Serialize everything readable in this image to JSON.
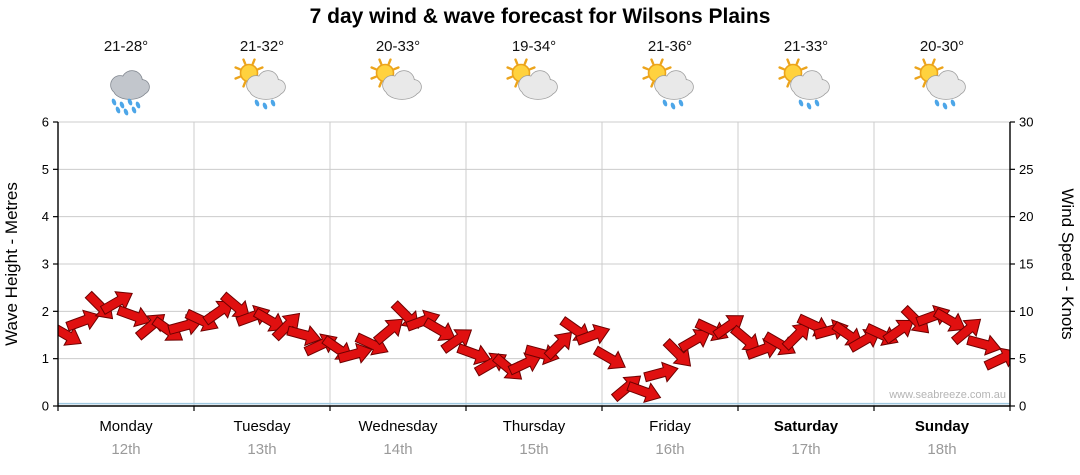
{
  "title": "7 day wind & wave forecast for Wilsons Plains",
  "watermark": "www.seabreeze.com.au",
  "colors": {
    "arrow": "#e01010",
    "arrow_outline": "#6e0000",
    "grid": "#cccccc",
    "axis": "#000000",
    "wave_line": "#9fc8e0",
    "date_text": "#9a9a9a",
    "watermark_text": "#b4b4b4",
    "sun_fill": "#ffd23e",
    "sun_stroke": "#eca41c",
    "cloud_fill": "#e9e9e9",
    "cloud_stroke": "#9a9a9a",
    "cloud_dark_fill": "#c2c6cc",
    "cloud_dark_stroke": "#7d838c",
    "rain_drop": "#4da6e8"
  },
  "days": [
    {
      "name": "Monday",
      "date": "12th",
      "temp": "21-28°",
      "icon": "rain-cloud",
      "bold": false
    },
    {
      "name": "Tuesday",
      "date": "13th",
      "temp": "21-32°",
      "icon": "sun-cloud-rain",
      "bold": false
    },
    {
      "name": "Wednesday",
      "date": "14th",
      "temp": "20-33°",
      "icon": "sun-cloud",
      "bold": false
    },
    {
      "name": "Thursday",
      "date": "15th",
      "temp": "19-34°",
      "icon": "sun-cloud",
      "bold": false
    },
    {
      "name": "Friday",
      "date": "16th",
      "temp": "21-36°",
      "icon": "sun-cloud-rain",
      "bold": false
    },
    {
      "name": "Saturday",
      "date": "17th",
      "temp": "21-33°",
      "icon": "sun-cloud-rain",
      "bold": true
    },
    {
      "name": "Sunday",
      "date": "18th",
      "temp": "20-30°",
      "icon": "sun-cloud-rain",
      "bold": true
    }
  ],
  "axes": {
    "left_label": "Wave Height - Metres",
    "right_label": "Wind Speed - Knots",
    "left_ticks": [
      0,
      1,
      2,
      3,
      4,
      5,
      6
    ],
    "right_ticks": [
      0,
      5,
      10,
      15,
      20,
      25,
      30
    ],
    "left_range": [
      0,
      6
    ],
    "right_range": [
      0,
      30
    ]
  },
  "chart_data": {
    "type": "line",
    "title": "7 day wind & wave forecast for Wilsons Plains",
    "xlabel": "",
    "ylabel_left": "Wave Height - Metres",
    "ylabel_right": "Wind Speed - Knots",
    "ylim_left": [
      0,
      6
    ],
    "ylim_right": [
      0,
      30
    ],
    "grid": true,
    "x_units": "days (0 = start of Monday, 7 = end of Sunday)",
    "x_start": 0.0625,
    "x_step": 0.125,
    "x_categories": [
      "Monday 12th",
      "Tuesday 13th",
      "Wednesday 14th",
      "Thursday 15th",
      "Friday 16th",
      "Saturday 17th",
      "Sunday 18th"
    ],
    "series": [
      {
        "name": "Wind Speed",
        "axis": "right",
        "units": "knots",
        "style": "red-arrows",
        "values": [
          7.5,
          9,
          10.5,
          11,
          9.5,
          8.5,
          8,
          8.5,
          9,
          10,
          10.5,
          9.5,
          9,
          8.5,
          7.5,
          6.5,
          6,
          5.5,
          6.5,
          8,
          9.5,
          9,
          8,
          7,
          5.5,
          4.5,
          4,
          4.5,
          5.5,
          6.5,
          8,
          7.5,
          5,
          2,
          1.5,
          3.5,
          5.5,
          7,
          8,
          8.5,
          7,
          6,
          6.5,
          7.5,
          8.5,
          8,
          7.5,
          7,
          7.5,
          8,
          9,
          9.5,
          9,
          8,
          6.5,
          5
        ],
        "angles_deg": [
          30,
          -20,
          45,
          -30,
          20,
          -40,
          35,
          -15,
          25,
          -35,
          40,
          -20,
          30,
          -45,
          15,
          -25,
          35,
          -15,
          25,
          -40,
          45,
          -20,
          30,
          -35,
          20,
          -30,
          40,
          -25,
          15,
          -45,
          35,
          -20,
          30,
          -40,
          20,
          -15,
          45,
          -30,
          25,
          -35,
          40,
          -20,
          30,
          -45,
          25,
          -15,
          35,
          -30,
          25,
          -35,
          45,
          -20,
          30,
          -40,
          15,
          -25
        ]
      },
      {
        "name": "Wave Height",
        "axis": "left",
        "units": "metres",
        "style": "blue-line",
        "values_constant": 0.05
      }
    ]
  }
}
